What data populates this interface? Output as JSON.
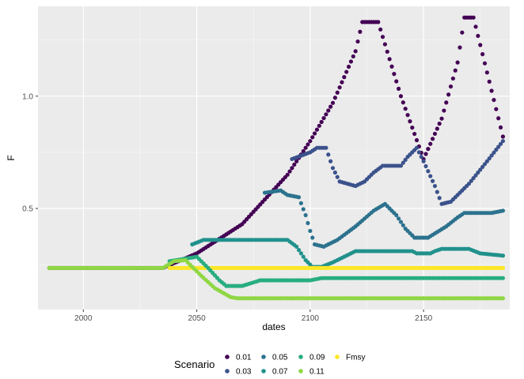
{
  "chart_data": {
    "type": "scatter",
    "xlabel": "dates",
    "ylabel": "F",
    "xlim": [
      1980,
      2188
    ],
    "ylim": [
      0.05,
      1.4
    ],
    "x_ticks": [
      2000,
      2050,
      2100,
      2150
    ],
    "y_ticks": [
      0.5,
      1.0
    ],
    "x_tick_labels": [
      "2000",
      "2050",
      "2100",
      "2150"
    ],
    "y_tick_labels": [
      "0.5",
      "1.0"
    ],
    "grid": true,
    "legend_position": "bottom",
    "legend_title": "Scenario",
    "series": [
      {
        "name": "0.01",
        "color": "#440154",
        "points": [
          [
            1985,
            0.235
          ],
          [
            2035,
            0.235
          ],
          [
            2050,
            0.3
          ],
          [
            2070,
            0.43
          ],
          [
            2090,
            0.65
          ],
          [
            2100,
            0.8
          ],
          [
            2110,
            0.97
          ],
          [
            2120,
            1.2
          ],
          [
            2123,
            1.33
          ],
          [
            2130,
            1.33
          ],
          [
            2140,
            1.0
          ],
          [
            2150,
            0.72
          ],
          [
            2158,
            0.9
          ],
          [
            2165,
            1.15
          ],
          [
            2168,
            1.35
          ],
          [
            2172,
            1.35
          ],
          [
            2185,
            0.82
          ]
        ]
      },
      {
        "name": "0.03",
        "color": "#3b528b",
        "points": [
          [
            2092,
            0.72
          ],
          [
            2100,
            0.75
          ],
          [
            2103,
            0.77
          ],
          [
            2107,
            0.77
          ],
          [
            2110,
            0.68
          ],
          [
            2113,
            0.62
          ],
          [
            2120,
            0.6
          ],
          [
            2124,
            0.62
          ],
          [
            2128,
            0.66
          ],
          [
            2132,
            0.69
          ],
          [
            2140,
            0.69
          ],
          [
            2143,
            0.73
          ],
          [
            2147,
            0.77
          ],
          [
            2150,
            0.71
          ],
          [
            2155,
            0.6
          ],
          [
            2158,
            0.52
          ],
          [
            2162,
            0.53
          ],
          [
            2170,
            0.61
          ],
          [
            2178,
            0.71
          ],
          [
            2185,
            0.8
          ]
        ]
      },
      {
        "name": "0.05",
        "color": "#2c728e",
        "points": [
          [
            2080,
            0.57
          ],
          [
            2087,
            0.58
          ],
          [
            2090,
            0.56
          ],
          [
            2095,
            0.55
          ],
          [
            2098,
            0.47
          ],
          [
            2100,
            0.4
          ],
          [
            2102,
            0.34
          ],
          [
            2106,
            0.33
          ],
          [
            2112,
            0.36
          ],
          [
            2120,
            0.42
          ],
          [
            2128,
            0.49
          ],
          [
            2133,
            0.52
          ],
          [
            2138,
            0.47
          ],
          [
            2142,
            0.41
          ],
          [
            2146,
            0.37
          ],
          [
            2152,
            0.37
          ],
          [
            2160,
            0.42
          ],
          [
            2165,
            0.46
          ],
          [
            2168,
            0.48
          ],
          [
            2180,
            0.48
          ],
          [
            2185,
            0.49
          ]
        ]
      },
      {
        "name": "0.07",
        "color": "#21918c",
        "points": [
          [
            2048,
            0.34
          ],
          [
            2053,
            0.36
          ],
          [
            2090,
            0.36
          ],
          [
            2094,
            0.33
          ],
          [
            2098,
            0.27
          ],
          [
            2101,
            0.24
          ],
          [
            2105,
            0.24
          ],
          [
            2110,
            0.26
          ],
          [
            2116,
            0.29
          ],
          [
            2120,
            0.31
          ],
          [
            2145,
            0.31
          ],
          [
            2147,
            0.3
          ],
          [
            2153,
            0.3
          ],
          [
            2155,
            0.31
          ],
          [
            2158,
            0.32
          ],
          [
            2170,
            0.32
          ],
          [
            2175,
            0.3
          ],
          [
            2185,
            0.29
          ]
        ]
      },
      {
        "name": "0.09",
        "color": "#27ad81",
        "points": [
          [
            2038,
            0.265
          ],
          [
            2050,
            0.285
          ],
          [
            2055,
            0.235
          ],
          [
            2060,
            0.18
          ],
          [
            2063,
            0.155
          ],
          [
            2070,
            0.155
          ],
          [
            2078,
            0.18
          ],
          [
            2100,
            0.18
          ],
          [
            2105,
            0.19
          ],
          [
            2185,
            0.19
          ]
        ]
      },
      {
        "name": "0.11",
        "color": "#8fd744",
        "points": [
          [
            1985,
            0.235
          ],
          [
            2035,
            0.235
          ],
          [
            2040,
            0.265
          ],
          [
            2045,
            0.27
          ],
          [
            2052,
            0.2
          ],
          [
            2058,
            0.145
          ],
          [
            2065,
            0.105
          ],
          [
            2068,
            0.1
          ],
          [
            2185,
            0.1
          ]
        ]
      },
      {
        "name": "Fmsy",
        "color": "#fde725",
        "points": [
          [
            2038,
            0.235
          ],
          [
            2185,
            0.235
          ]
        ]
      }
    ]
  }
}
